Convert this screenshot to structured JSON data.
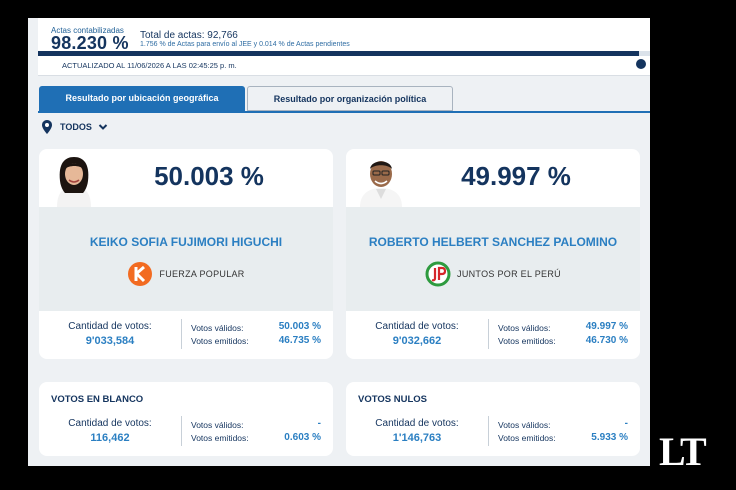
{
  "header": {
    "actas_label": "Actas contabilizadas",
    "actas_pct": "98.230 %",
    "total_actas": "Total de actas: 92,766",
    "total_sub": "1.756 % de Actas para envío al JEE y 0.014 % de Actas pendientes",
    "progress_fraction": 0.982,
    "updated": "ACTUALIZADO AL 11/06/2026 A LAS 02:45:25 p. m."
  },
  "tabs": [
    {
      "label": "Resultado por ubicación geográfica",
      "active": true
    },
    {
      "label": "Resultado por organización política",
      "active": false
    }
  ],
  "filter": {
    "label": "TODOS"
  },
  "candidates": [
    {
      "pct": "50.003 %",
      "name": "KEIKO SOFIA FUJIMORI HIGUCHI",
      "party": "FUERZA POPULAR",
      "votes_label": "Cantidad de votos:",
      "votes": "9'033,584",
      "valid_label": "Votos válidos:",
      "valid": "50.003 %",
      "emitted_label": "Votos emitidos:",
      "emitted": "46.735 %"
    },
    {
      "pct": "49.997 %",
      "name": "ROBERTO HELBERT SANCHEZ PALOMINO",
      "party": "JUNTOS POR EL PERÚ",
      "votes_label": "Cantidad de votos:",
      "votes": "9'032,662",
      "valid_label": "Votos válidos:",
      "valid": "49.997 %",
      "emitted_label": "Votos emitidos:",
      "emitted": "46.730 %"
    }
  ],
  "blank": {
    "title": "VOTOS EN BLANCO",
    "votes_label": "Cantidad de votos:",
    "votes": "116,462",
    "valid_label": "Votos válidos:",
    "valid": "-",
    "emitted_label": "Votos emitidos:",
    "emitted": "0.603 %"
  },
  "null": {
    "title": "VOTOS NULOS",
    "votes_label": "Cantidad de votos:",
    "votes": "1'146,763",
    "valid_label": "Votos válidos:",
    "valid": "-",
    "emitted_label": "Votos emitidos:",
    "emitted": "5.933 %"
  },
  "watermark": "LT",
  "colors": {
    "navy": "#14345e",
    "accent": "#2b7fc2",
    "tab_active": "#1f6fb5",
    "fuerza_orange": "#f26b21",
    "jp_green": "#2e9b3f",
    "jp_red": "#d6262b"
  },
  "icons": [
    "location-pin-icon",
    "chevron-down-icon"
  ]
}
